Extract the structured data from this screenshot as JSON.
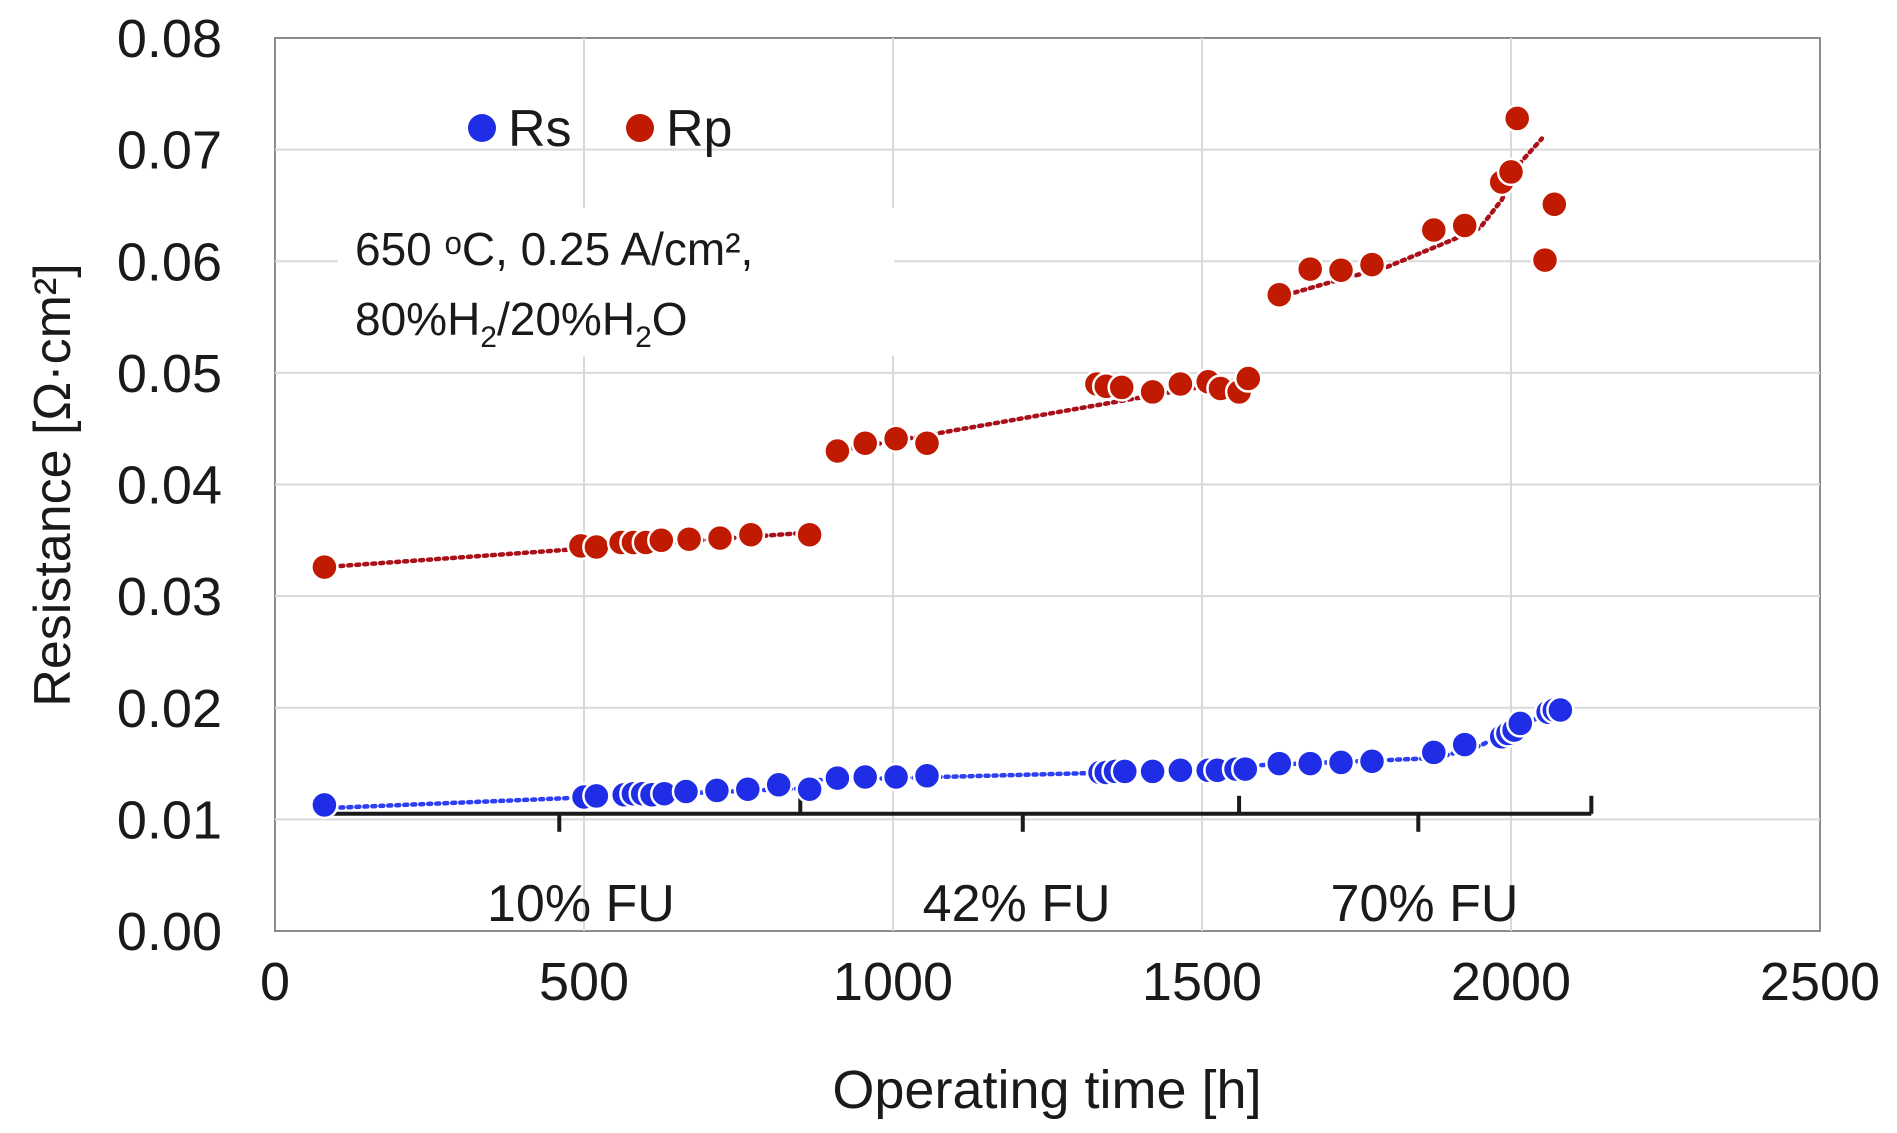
{
  "chart_data": {
    "type": "scatter",
    "title": "",
    "xlabel": "Operating time [h]",
    "ylabel": "Resistance [Ω·cm²]",
    "xlim": [
      0,
      2500
    ],
    "ylim": [
      0,
      0.08
    ],
    "x_ticks": [
      0,
      500,
      1000,
      1500,
      2000,
      2500
    ],
    "x_tick_labels": [
      "0",
      "500",
      "1000",
      "1500",
      "2000",
      "2500"
    ],
    "y_ticks": [
      0,
      0.01,
      0.02,
      0.03,
      0.04,
      0.05,
      0.06,
      0.07,
      0.08
    ],
    "y_tick_labels": [
      "0.00",
      "0.01",
      "0.02",
      "0.03",
      "0.04",
      "0.05",
      "0.06",
      "0.07",
      "0.08"
    ],
    "grid": true,
    "legend_position": "top-left",
    "annotation": {
      "line1": "650 ᵒC, 0.25 A/cm², ",
      "line2_parts": [
        "80%H",
        "2",
        "/20%H",
        "2",
        "O"
      ]
    },
    "fu_regions": {
      "bracket_ticks_x": [
        80,
        850,
        1560,
        2130
      ],
      "mid_ticks_x": [
        460,
        1210,
        1850
      ],
      "bracket_y": 0.0105,
      "labels": [
        {
          "text": "10% FU",
          "x": 495
        },
        {
          "text": "42% FU",
          "x": 1200
        },
        {
          "text": "70% FU",
          "x": 1860
        }
      ]
    },
    "series": [
      {
        "name": "Rs",
        "color": "#1f2ee6",
        "trend_color": "#2d3ff2",
        "x": [
          80,
          500,
          520,
          565,
          580,
          595,
          610,
          630,
          665,
          715,
          765,
          815,
          865,
          910,
          955,
          1005,
          1055,
          1335,
          1345,
          1360,
          1375,
          1420,
          1465,
          1510,
          1525,
          1555,
          1570,
          1625,
          1675,
          1725,
          1775,
          1875,
          1925,
          1985,
          1995,
          2005,
          2015,
          2060,
          2070,
          2080
        ],
        "y": [
          0.0113,
          0.012,
          0.0121,
          0.0122,
          0.0123,
          0.0123,
          0.0122,
          0.0123,
          0.0125,
          0.0126,
          0.0127,
          0.0131,
          0.0127,
          0.0137,
          0.0138,
          0.0138,
          0.0139,
          0.0142,
          0.0142,
          0.0143,
          0.0143,
          0.0143,
          0.0144,
          0.0144,
          0.0144,
          0.0145,
          0.0145,
          0.015,
          0.015,
          0.0151,
          0.0152,
          0.016,
          0.0167,
          0.0174,
          0.0177,
          0.018,
          0.0186,
          0.0196,
          0.0198,
          0.0198
        ],
        "trend_segments": [
          {
            "x": [
              80,
              865
            ],
            "y": [
              0.011,
              0.0128
            ]
          },
          {
            "x": [
              865,
              1570
            ],
            "y": [
              0.0135,
              0.0145
            ]
          },
          {
            "x": [
              1570,
              1880,
              1950,
              2000,
              2080
            ],
            "y": [
              0.0148,
              0.0155,
              0.0166,
              0.018,
              0.02
            ]
          }
        ]
      },
      {
        "name": "Rp",
        "color": "#c01a00",
        "trend_color": "#a8101a",
        "x": [
          80,
          495,
          520,
          560,
          580,
          600,
          625,
          670,
          720,
          770,
          865,
          910,
          955,
          1005,
          1055,
          1330,
          1345,
          1370,
          1420,
          1465,
          1510,
          1530,
          1560,
          1575,
          1625,
          1675,
          1725,
          1775,
          1875,
          1925,
          1985,
          2000,
          2010,
          2055,
          2070
        ],
        "y": [
          0.0326,
          0.0345,
          0.0344,
          0.0348,
          0.0348,
          0.0348,
          0.035,
          0.0351,
          0.0352,
          0.0355,
          0.0355,
          0.043,
          0.0437,
          0.0441,
          0.0437,
          0.049,
          0.0488,
          0.0487,
          0.0483,
          0.049,
          0.0492,
          0.0486,
          0.0483,
          0.0495,
          0.057,
          0.0593,
          0.0592,
          0.0597,
          0.0628,
          0.0632,
          0.0671,
          0.068,
          0.0728,
          0.0601,
          0.0651
        ],
        "trend_segments": [
          {
            "x": [
              80,
              865
            ],
            "y": [
              0.0326,
              0.0357
            ]
          },
          {
            "x": [
              910,
              1575
            ],
            "y": [
              0.043,
              0.0495
            ]
          },
          {
            "x": [
              1625,
              1700,
              1800,
              1900,
              1950,
              1985,
              2010,
              2050
            ],
            "y": [
              0.0568,
              0.058,
              0.0595,
              0.0618,
              0.063,
              0.0655,
              0.0685,
              0.071
            ]
          }
        ]
      }
    ]
  }
}
